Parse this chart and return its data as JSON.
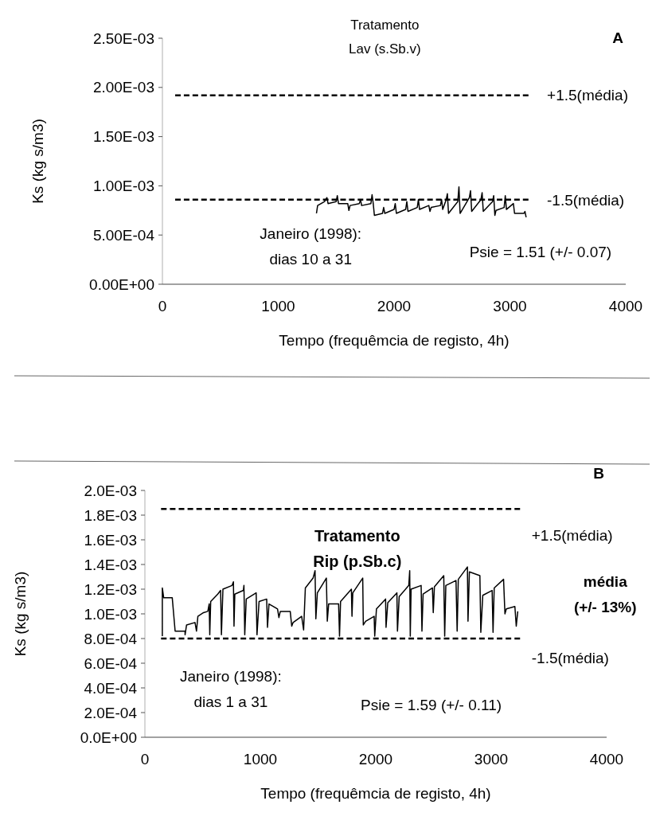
{
  "chart_data": [
    {
      "type": "line",
      "title": "Tratamento\nLav (s.Sb.v)",
      "xlabel": "Tempo (frequêmcia de registo, 4h)",
      "ylabel": "Ks (kg s/m3)",
      "xlim": [
        0,
        4000
      ],
      "xticks": [
        0,
        1000,
        2000,
        3000,
        4000
      ],
      "ylim": [
        0,
        0.0025
      ],
      "yticks": [
        {
          "value": 0,
          "label": "0.00E+00"
        },
        {
          "value": 0.0005,
          "label": "5.00E-04"
        },
        {
          "value": 0.001,
          "label": "1.00E-03"
        },
        {
          "value": 0.0015,
          "label": "1.50E-03"
        },
        {
          "value": 0.002,
          "label": "2.00E-03"
        },
        {
          "value": 0.0025,
          "label": "2.50E-03"
        }
      ],
      "series": [
        {
          "color": "#000000",
          "line_style": "solid",
          "x": [
            1330,
            1340,
            1400,
            1420,
            1430,
            1500,
            1510,
            1520,
            1600,
            1610,
            1620,
            1700,
            1710,
            1720,
            1800,
            1810,
            1820,
            1830,
            1900,
            1910,
            1920,
            2000,
            2010,
            2020,
            2100,
            2110,
            2120,
            2200,
            2210,
            2220,
            2300,
            2310,
            2320,
            2400,
            2410,
            2420,
            2450,
            2460,
            2470,
            2550,
            2560,
            2570,
            2650,
            2660,
            2670,
            2750,
            2760,
            2770,
            2850,
            2860,
            2870,
            2880,
            2950,
            2960,
            2970,
            3030,
            3040,
            3120,
            3130,
            3140
          ],
          "values": [
            0.00072,
            0.0008,
            0.00084,
            0.00088,
            0.00082,
            0.00084,
            0.0009,
            0.00082,
            0.00082,
            0.00075,
            0.0008,
            0.00082,
            0.00086,
            0.0008,
            0.00082,
            0.00091,
            0.00082,
            0.0007,
            0.00072,
            0.00078,
            0.00072,
            0.00076,
            0.00082,
            0.00072,
            0.00076,
            0.00084,
            0.00074,
            0.00078,
            0.00086,
            0.00076,
            0.0008,
            0.00074,
            0.00078,
            0.0008,
            0.00086,
            0.00076,
            0.00086,
            0.00092,
            0.00072,
            0.00084,
            0.00099,
            0.00072,
            0.00088,
            0.00095,
            0.00074,
            0.00086,
            0.00093,
            0.00074,
            0.00084,
            0.0009,
            0.0007,
            0.00075,
            0.00078,
            0.0009,
            0.00076,
            0.00082,
            0.00072,
            0.00072,
            0.00074,
            0.00068
          ]
        },
        {
          "color": "#000000",
          "line_style": "dashed",
          "x": [
            110,
            3160
          ],
          "values": [
            0.00192,
            0.00192
          ]
        },
        {
          "color": "#000000",
          "line_style": "dashed",
          "x": [
            110,
            3160
          ],
          "values": [
            0.00086,
            0.00086
          ]
        }
      ],
      "annotations": [
        "+1.5(média)",
        "-1.5(média)",
        "Janeiro (1998):\ndias 10 a 31",
        "Psie = 1.51 (+/- 0.07)",
        "A"
      ]
    },
    {
      "type": "line",
      "title": "Tratamento\nRip (p.Sb.c)",
      "xlabel": "Tempo (frequêmcia de registo, 4h)",
      "ylabel": "Ks (kg s/m3)",
      "xlim": [
        0,
        4000
      ],
      "xticks": [
        0,
        1000,
        2000,
        3000,
        4000
      ],
      "ylim": [
        0,
        0.002
      ],
      "yticks": [
        {
          "value": 0,
          "label": "0.0E+00"
        },
        {
          "value": 0.0002,
          "label": "2.0E-04"
        },
        {
          "value": 0.0004,
          "label": "4.0E-04"
        },
        {
          "value": 0.0006,
          "label": "6.0E-04"
        },
        {
          "value": 0.0008,
          "label": "8.0E-04"
        },
        {
          "value": 0.001,
          "label": "1.0E-03"
        },
        {
          "value": 0.0012,
          "label": "1.2E-03"
        },
        {
          "value": 0.0014,
          "label": "1.4E-03"
        },
        {
          "value": 0.0016,
          "label": "1.6E-03"
        },
        {
          "value": 0.0018,
          "label": "1.8E-03"
        },
        {
          "value": 0.002,
          "label": "2.0E-03"
        }
      ],
      "series": [
        {
          "color": "#000000",
          "line_style": "solid",
          "x": [
            151,
            151,
            163,
            237,
            262,
            348,
            348,
            361,
            434,
            447,
            459,
            508,
            545,
            557,
            562,
            570,
            631,
            656,
            663,
            676,
            755,
            767,
            772,
            779,
            853,
            858,
            865,
            878,
            964,
            971,
            989,
            1055,
            1062,
            1075,
            1149,
            1161,
            1173,
            1259,
            1272,
            1284,
            1358,
            1375,
            1390,
            1457,
            1474,
            1481,
            1494,
            1572,
            1580,
            1592,
            1678,
            1686,
            1695,
            1789,
            1794,
            1801,
            1887,
            1892,
            1912,
            1986,
            1991,
            2006,
            2085,
            2089,
            2104,
            2183,
            2188,
            2203,
            2286,
            2294,
            2299,
            2306,
            2393,
            2400,
            2410,
            2491,
            2498,
            2508,
            2589,
            2597,
            2607,
            2695,
            2705,
            2715,
            2794,
            2799,
            2811,
            2902,
            2910,
            2927,
            3008,
            3016,
            3026,
            3107,
            3119,
            3131,
            3205,
            3217,
            3230
          ],
          "values": [
            0.00082,
            0.00121,
            0.00113,
            0.00113,
            0.00086,
            0.00086,
            0.00083,
            0.00091,
            0.00093,
            0.00086,
            0.00098,
            0.00101,
            0.00102,
            0.00108,
            0.00083,
            0.0011,
            0.00116,
            0.00119,
            0.00083,
            0.0012,
            0.00123,
            0.00126,
            0.0009,
            0.00116,
            0.00119,
            0.00123,
            0.00083,
            0.00112,
            0.00117,
            0.00083,
            0.0011,
            0.00112,
            0.00089,
            0.00108,
            0.00104,
            0.00097,
            0.00102,
            0.00102,
            0.0009,
            0.00093,
            0.00098,
            0.00087,
            0.00121,
            0.00129,
            0.00135,
            0.00096,
            0.00117,
            0.00129,
            0.00094,
            0.00108,
            0.00108,
            0.00082,
            0.0011,
            0.0012,
            0.00098,
            0.00117,
            0.00129,
            0.00091,
            0.00094,
            0.00098,
            0.00082,
            0.00104,
            0.00112,
            0.00089,
            0.00109,
            0.00117,
            0.00086,
            0.00114,
            0.00123,
            0.00135,
            0.00082,
            0.0012,
            0.00123,
            0.00086,
            0.00116,
            0.00121,
            0.00101,
            0.00122,
            0.00131,
            0.00082,
            0.00123,
            0.00127,
            0.00086,
            0.00128,
            0.00138,
            0.00094,
            0.00134,
            0.00131,
            0.00085,
            0.00115,
            0.00119,
            0.00085,
            0.00121,
            0.00128,
            0.001,
            0.00104,
            0.00106,
            0.0009,
            0.00102
          ]
        },
        {
          "color": "#000000",
          "line_style": "dashed",
          "x": [
            140,
            3250
          ],
          "values": [
            0.00185,
            0.00185
          ]
        },
        {
          "color": "#000000",
          "line_style": "dashed",
          "x": [
            140,
            3250
          ],
          "values": [
            0.0008,
            0.0008
          ]
        }
      ],
      "annotations": [
        "+1.5(média)",
        "-1.5(média)",
        "Janeiro (1998):\ndias 1 a 31",
        "Psie = 1.59 (+/- 0.11)",
        "média\n(+/- 13%)",
        "B"
      ]
    }
  ]
}
